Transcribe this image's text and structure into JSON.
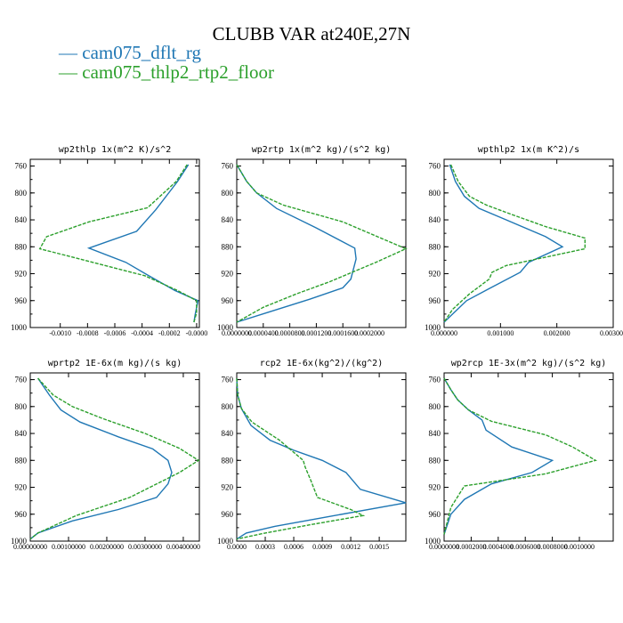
{
  "title": "CLUBB VAR at240E,27N",
  "legend": [
    {
      "label": "cam075_dflt_rg",
      "color": "#1f77b4"
    },
    {
      "label": "cam075_thlp2_rtp2_floor",
      "color": "#2ca02c"
    }
  ],
  "chart_data": [
    {
      "type": "line",
      "title": "wp2thlp   1x(m^2 K)/s^2",
      "ylim": [
        1000,
        750
      ],
      "yticks": [
        "760",
        "800",
        "840",
        "880",
        "920",
        "960",
        "1000"
      ],
      "ytick_values": [
        760,
        800,
        840,
        880,
        920,
        960,
        1000
      ],
      "xlim": [
        -0.00122,
        2e-05
      ],
      "xtick_values": [
        -0.001,
        -0.0008,
        -0.0006,
        -0.0004,
        -0.0002,
        0.0
      ],
      "xtick_labels": [
        "-0.0010",
        "-0.0008",
        "-0.0006",
        "-0.0004",
        "-0.0002",
        "-0.0000"
      ],
      "series": [
        {
          "name": "cam075_dflt_rg",
          "x": [
            -6e-05,
            -0.00014,
            -0.0003,
            -0.00044,
            -0.00079,
            -0.00052,
            -0.00036,
            -0.00016,
            1e-05,
            -1e-05,
            -2e-05
          ],
          "y": [
            758,
            783,
            825,
            857,
            882,
            903,
            922,
            945,
            960,
            980,
            992
          ]
        },
        {
          "name": "cam075_thlp2_rtp2_floor",
          "x": [
            -7e-05,
            -0.00015,
            -0.00036,
            -0.00079,
            -0.0011,
            -0.00115,
            -0.00038,
            -0.00014,
            0.0,
            0.0,
            -2e-05
          ],
          "y": [
            758,
            783,
            822,
            843,
            865,
            883,
            923,
            945,
            960,
            978,
            992
          ]
        }
      ]
    },
    {
      "type": "line",
      "title": "wp2rtp   1x(m^2 kg)/(s^2 kg)",
      "ylim": [
        1000,
        750
      ],
      "yticks": [
        "760",
        "800",
        "840",
        "880",
        "920",
        "960",
        "1000"
      ],
      "ytick_values": [
        760,
        800,
        840,
        880,
        920,
        960,
        1000
      ],
      "xlim": [
        0.0,
        0.000255
      ],
      "xtick_values": [
        0.0,
        4e-05,
        8e-05,
        0.00012,
        0.00016,
        0.0002
      ],
      "xtick_labels": [
        "0.0000000",
        "0.0000400",
        "0.0000800",
        "0.0001200",
        "0.0001600",
        "0.0002000"
      ],
      "series": [
        {
          "name": "cam075_dflt_rg",
          "x": [
            0.0,
            1.5e-05,
            3e-05,
            6e-05,
            0.00012,
            0.000178,
            0.00018,
            0.000172,
            0.00016,
            0.00011,
            4.5e-05,
            0.0
          ],
          "y": [
            758,
            783,
            800,
            823,
            852,
            882,
            898,
            928,
            941,
            958,
            978,
            992
          ]
        },
        {
          "name": "cam075_thlp2_rtp2_floor",
          "x": [
            0.0,
            1.5e-05,
            3e-05,
            7e-05,
            0.00016,
            0.000255,
            0.00021,
            0.00014,
            9e-05,
            4e-05,
            0.0
          ],
          "y": [
            758,
            783,
            800,
            818,
            843,
            883,
            903,
            932,
            950,
            970,
            992
          ]
        }
      ]
    },
    {
      "type": "line",
      "title": "wpthlp2   1x(m K^2)/s",
      "ylim": [
        1000,
        750
      ],
      "yticks": [
        "760",
        "800",
        "840",
        "880",
        "920",
        "960",
        "1000"
      ],
      "ytick_values": [
        760,
        800,
        840,
        880,
        920,
        960,
        1000
      ],
      "xlim": [
        0.0,
        0.003
      ],
      "xtick_values": [
        0.0,
        0.001,
        0.002,
        0.003
      ],
      "xtick_labels": [
        "0.000000",
        "0.001000",
        "0.002000",
        "0.003000"
      ],
      "series": [
        {
          "name": "cam075_dflt_rg",
          "x": [
            0.0001,
            0.0002,
            0.00036,
            0.00062,
            0.0011,
            0.0018,
            0.0021,
            0.0015,
            0.00135,
            0.0008,
            0.0004,
            0.00015,
            0.0
          ],
          "y": [
            758,
            783,
            805,
            823,
            840,
            865,
            880,
            903,
            918,
            942,
            960,
            980,
            992
          ]
        },
        {
          "name": "cam075_thlp2_rtp2_floor",
          "x": [
            0.00012,
            0.00025,
            0.00045,
            0.00075,
            0.0012,
            0.0018,
            0.0025,
            0.0025,
            0.0011,
            0.00085,
            0.0008,
            0.00045,
            0.00015,
            0.0
          ],
          "y": [
            758,
            783,
            805,
            818,
            832,
            850,
            867,
            883,
            908,
            918,
            928,
            950,
            973,
            992
          ]
        }
      ]
    },
    {
      "type": "line",
      "title": "wprtp2   1E-6x(m kg)/(s kg)",
      "ylim": [
        1000,
        750
      ],
      "yticks": [
        "760",
        "800",
        "840",
        "880",
        "920",
        "960",
        "1000"
      ],
      "ytick_values": [
        760,
        800,
        840,
        880,
        920,
        960,
        1000
      ],
      "xlim": [
        0.0,
        0.00442
      ],
      "xtick_values": [
        0.0,
        0.001,
        0.002,
        0.003,
        0.004
      ],
      "xtick_labels": [
        "0.00000000",
        "0.00100000",
        "0.00200000",
        "0.00300000",
        "0.00400000"
      ],
      "series": [
        {
          "name": "cam075_dflt_rg",
          "x": [
            0.0002,
            0.0005,
            0.0008,
            0.0013,
            0.0023,
            0.0032,
            0.0036,
            0.0037,
            0.0036,
            0.0033,
            0.0023,
            0.0011,
            0.0002,
            0.0
          ],
          "y": [
            758,
            783,
            805,
            823,
            845,
            863,
            880,
            898,
            915,
            935,
            953,
            970,
            988,
            997
          ]
        },
        {
          "name": "cam075_thlp2_rtp2_floor",
          "x": [
            0.0002,
            0.0006,
            0.0011,
            0.0019,
            0.003,
            0.0039,
            0.0044,
            0.0039,
            0.0026,
            0.0012,
            0.0002,
            0.0
          ],
          "y": [
            758,
            783,
            800,
            818,
            840,
            862,
            880,
            898,
            935,
            962,
            988,
            997
          ]
        }
      ]
    },
    {
      "type": "line",
      "title": "rcp2   1E-6x(kg^2)/(kg^2)",
      "ylim": [
        1000,
        750
      ],
      "yticks": [
        "760",
        "800",
        "840",
        "880",
        "920",
        "960",
        "1000"
      ],
      "ytick_values": [
        760,
        800,
        840,
        880,
        920,
        960,
        1000
      ],
      "xlim": [
        0.0,
        0.00178
      ],
      "xtick_values": [
        0.0,
        0.0003,
        0.0006,
        0.0009,
        0.0012,
        0.0015
      ],
      "xtick_labels": [
        "0.0000",
        "0.0003",
        "0.0006",
        "0.0009",
        "0.0012",
        "0.0015"
      ],
      "series": [
        {
          "name": "cam075_dflt_rg",
          "x": [
            0.0,
            1e-05,
            5e-05,
            0.00015,
            0.00035,
            0.0006,
            0.0009,
            0.00115,
            0.0013,
            0.00178,
            0.00095,
            0.0004,
            0.0001,
            0.0
          ],
          "y": [
            758,
            783,
            803,
            828,
            850,
            865,
            880,
            898,
            923,
            943,
            964,
            978,
            988,
            997
          ]
        },
        {
          "name": "cam075_thlp2_rtp2_floor",
          "x": [
            0.0,
            1e-05,
            5e-05,
            0.00016,
            0.00045,
            0.0007,
            0.00072,
            0.00078,
            0.00085,
            0.0012,
            0.00133,
            0.0008,
            0.0003,
            0.0
          ],
          "y": [
            758,
            783,
            803,
            823,
            850,
            880,
            890,
            910,
            935,
            953,
            962,
            975,
            988,
            997
          ]
        }
      ]
    },
    {
      "type": "line",
      "title": "wp2rcp   1E-3x(m^2 kg)/(s^2 kg)",
      "ylim": [
        1000,
        750
      ],
      "yticks": [
        "760",
        "800",
        "840",
        "880",
        "920",
        "960",
        "1000"
      ],
      "ytick_values": [
        760,
        800,
        840,
        880,
        920,
        960,
        1000
      ],
      "xlim": [
        0.0,
        0.00125
      ],
      "xtick_values": [
        0.0,
        0.0002,
        0.0004,
        0.0006,
        0.0008,
        0.001
      ],
      "xtick_labels": [
        "0.0000000",
        "0.0002000",
        "0.0004000",
        "0.0006000",
        "0.0008000",
        "0.0010000"
      ],
      "series": [
        {
          "name": "cam075_dflt_rg",
          "x": [
            0.0,
            5e-05,
            0.0001,
            0.00018,
            0.00028,
            0.00031,
            0.0005,
            0.0008,
            0.00065,
            0.00035,
            0.00015,
            5e-05,
            0.0
          ],
          "y": [
            758,
            775,
            790,
            805,
            820,
            835,
            860,
            880,
            898,
            915,
            938,
            960,
            990
          ]
        },
        {
          "name": "cam075_thlp2_rtp2_floor",
          "x": [
            0.0,
            5e-05,
            0.0001,
            0.00018,
            0.00035,
            0.00075,
            0.00095,
            0.00112,
            0.00075,
            0.00015,
            5e-05,
            0.0
          ],
          "y": [
            758,
            775,
            790,
            805,
            822,
            842,
            860,
            880,
            900,
            918,
            950,
            990
          ]
        }
      ]
    }
  ]
}
